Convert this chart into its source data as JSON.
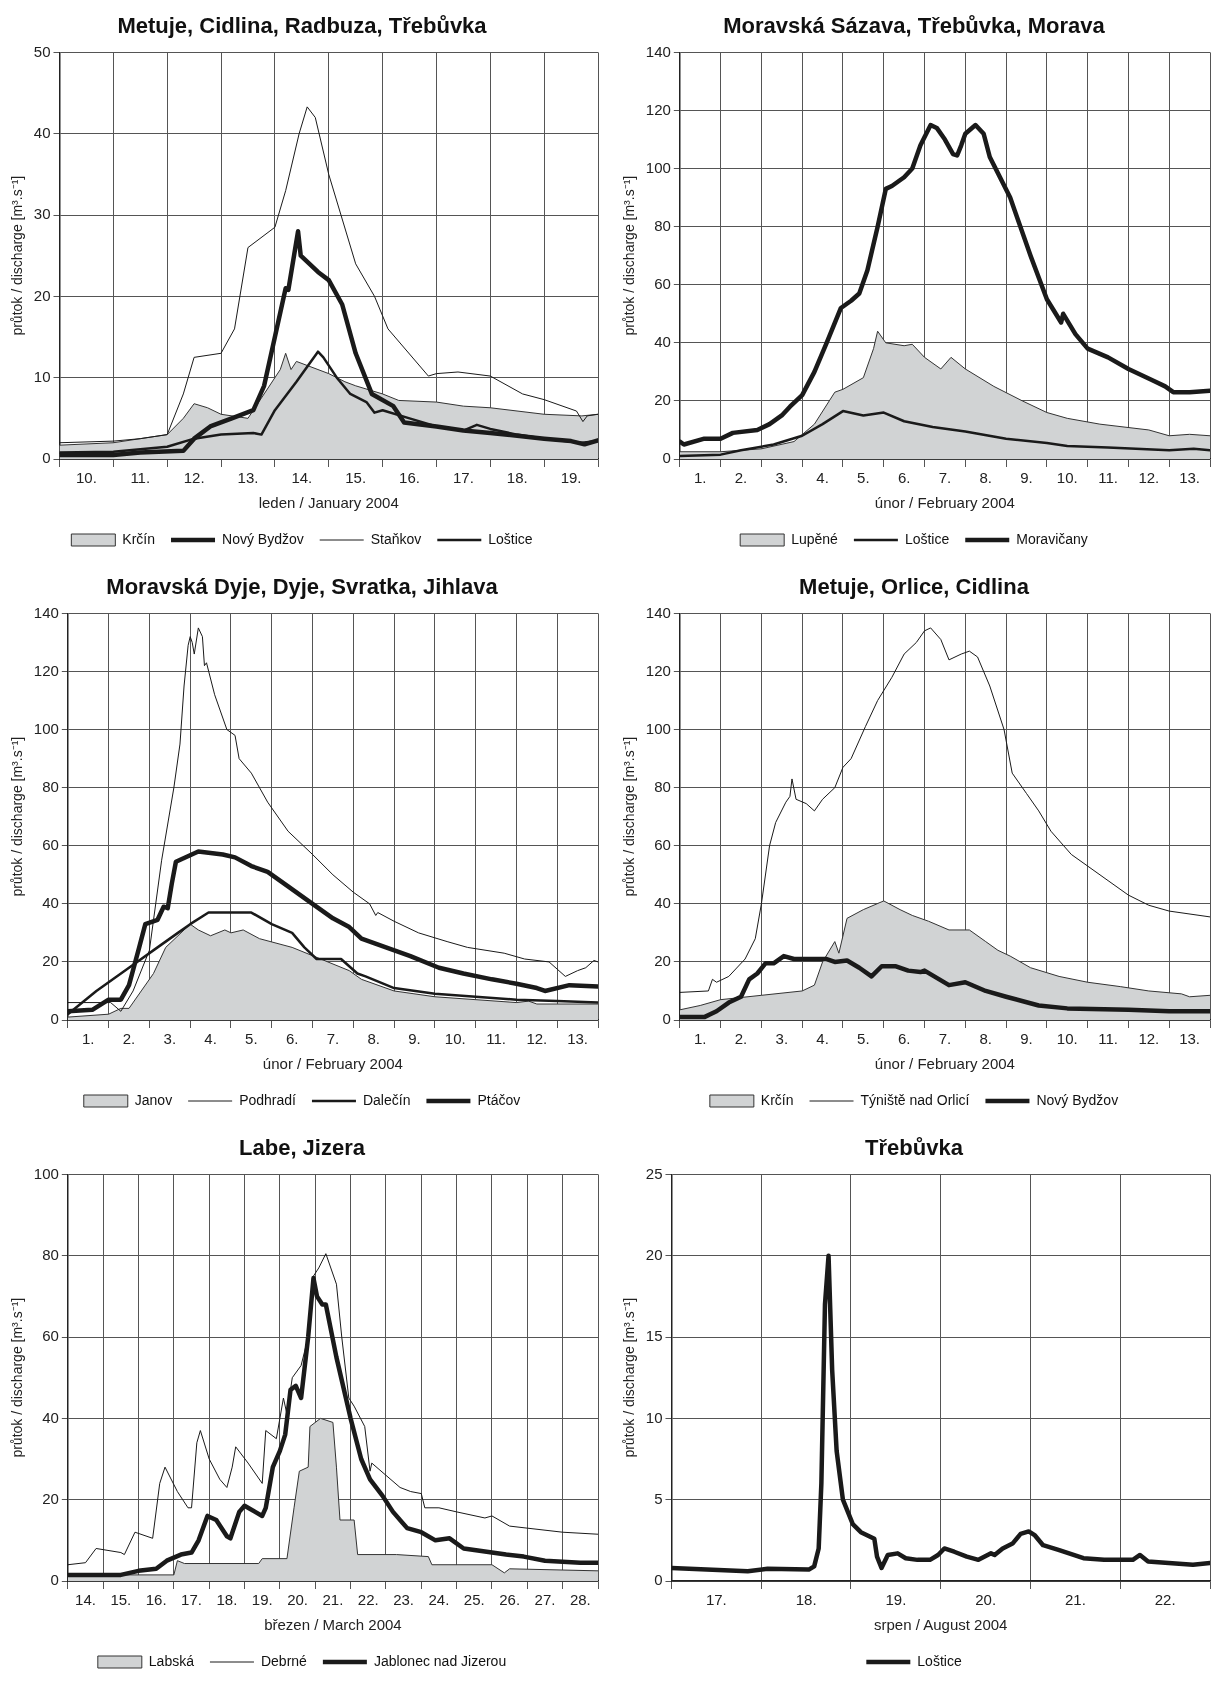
{
  "chart_data": [
    {
      "type": "line",
      "title": "Metuje, Cidlina, Radbuza, Třebůvka",
      "xlabel": "leden / January 2004",
      "ylabel": "průtok / discharge [m³.s⁻¹]",
      "legend": "bottom",
      "grid": true,
      "xlim": [
        10,
        20
      ],
      "ylim": [
        0,
        50
      ],
      "yticks": [
        0,
        10,
        20,
        30,
        40,
        50
      ],
      "xticks": [
        {
          "value": 10,
          "label": null
        },
        {
          "value": 10.5,
          "label": "10."
        },
        {
          "value": 11,
          "label": null
        },
        {
          "value": 11.5,
          "label": "11."
        },
        {
          "value": 12,
          "label": null
        },
        {
          "value": 12.5,
          "label": "12."
        },
        {
          "value": 13,
          "label": null
        },
        {
          "value": 13.5,
          "label": "13."
        },
        {
          "value": 14,
          "label": null
        },
        {
          "value": 14.5,
          "label": "14."
        },
        {
          "value": 15,
          "label": null
        },
        {
          "value": 15.5,
          "label": "15."
        },
        {
          "value": 16,
          "label": null
        },
        {
          "value": 16.5,
          "label": "16."
        },
        {
          "value": 17,
          "label": null
        },
        {
          "value": 17.5,
          "label": "17."
        },
        {
          "value": 18,
          "label": null
        },
        {
          "value": 18.5,
          "label": "18."
        },
        {
          "value": 19,
          "label": null
        },
        {
          "value": 19.5,
          "label": "19."
        },
        {
          "value": 20,
          "label": null
        }
      ],
      "series": [
        {
          "name": "Krčín",
          "type": "area",
          "color": "#d1d3d4",
          "x": [
            10,
            11,
            11.5,
            12,
            12.3,
            12.5,
            12.75,
            13,
            13.5,
            13.7,
            14.1,
            14.2,
            14.3,
            14.4,
            14.6,
            14.8,
            15,
            15.3,
            15.5,
            16,
            16.3,
            17,
            17.5,
            18,
            19,
            19.7,
            20
          ],
          "values": [
            1.7,
            2,
            2.5,
            3,
            5,
            6.8,
            6.3,
            5.5,
            5,
            7,
            11,
            13,
            11,
            12,
            11.5,
            11,
            10.5,
            9.5,
            9,
            8,
            7.2,
            7,
            6.5,
            6.3,
            5.5,
            5.3,
            5.5
          ]
        },
        {
          "name": "Nový Bydžov",
          "color": "#1a1a1a",
          "x": [
            10,
            11,
            11.5,
            12.3,
            12.5,
            12.8,
            13.2,
            13.6,
            13.8,
            14,
            14.2,
            14.25,
            14.43,
            14.48,
            14.8,
            15,
            15.25,
            15.5,
            15.8,
            16.2,
            16.4,
            17,
            17.5,
            18,
            19,
            19.5,
            19.75,
            20
          ],
          "values": [
            0.5,
            0.5,
            0.8,
            1,
            2.5,
            4,
            5,
            6,
            9,
            15,
            21,
            20.8,
            28,
            25,
            23,
            22,
            19,
            13,
            8,
            6.5,
            4.5,
            4,
            3.5,
            3.2,
            2.5,
            2.2,
            1.8,
            2.3
          ]
        },
        {
          "name": "Staňkov",
          "color": "#1a1a1a",
          "x": [
            10,
            11,
            11.5,
            12,
            12.3,
            12.5,
            13,
            13.25,
            13.5,
            14,
            14.2,
            14.45,
            14.6,
            14.75,
            15,
            15.5,
            15.85,
            16.1,
            16.85,
            17,
            17.4,
            18,
            18.6,
            19,
            19.6,
            19.72,
            19.8,
            20
          ],
          "values": [
            2,
            2.2,
            2.5,
            3,
            8,
            12.5,
            13,
            16,
            26,
            28.5,
            33,
            40,
            43.3,
            42,
            35,
            24,
            20,
            16,
            10.2,
            10.5,
            10.7,
            10.2,
            8,
            7.3,
            5.9,
            4.6,
            5.3,
            5.5
          ]
        },
        {
          "name": "Loštice",
          "color": "#1a1a1a",
          "x": [
            10,
            11,
            12,
            12.5,
            13,
            13.6,
            13.75,
            14,
            14.4,
            14.8,
            14.9,
            15.15,
            15.4,
            15.7,
            15.85,
            16,
            16.5,
            17,
            17.5,
            17.75,
            18,
            18.5,
            19,
            19.7,
            20
          ],
          "values": [
            0.8,
            0.9,
            1.5,
            2.5,
            3,
            3.2,
            3,
            6,
            9.5,
            13.2,
            12.5,
            10,
            8,
            7,
            5.7,
            6,
            5,
            4,
            3.5,
            4.2,
            3.7,
            3,
            2.5,
            2,
            2.2
          ]
        }
      ]
    },
    {
      "type": "line",
      "title": "Moravská Sázava, Třebůvka, Morava",
      "xlabel": "únor / February 2004",
      "ylabel": "průtok / discharge [m³.s⁻¹]",
      "legend": "bottom",
      "grid": true,
      "xlim": [
        1,
        14
      ],
      "ylim": [
        0,
        140
      ],
      "yticks": [
        0,
        20,
        40,
        60,
        80,
        100,
        120,
        140
      ],
      "xticks": [
        {
          "value": 1,
          "label": null
        },
        {
          "value": 1.5,
          "label": "1."
        },
        {
          "value": 2,
          "label": null
        },
        {
          "value": 2.5,
          "label": "2."
        },
        {
          "value": 3,
          "label": null
        },
        {
          "value": 3.5,
          "label": "3."
        },
        {
          "value": 4,
          "label": null
        },
        {
          "value": 4.5,
          "label": "4."
        },
        {
          "value": 5,
          "label": null
        },
        {
          "value": 5.5,
          "label": "5."
        },
        {
          "value": 6,
          "label": null
        },
        {
          "value": 6.5,
          "label": "6."
        },
        {
          "value": 7,
          "label": null
        },
        {
          "value": 7.5,
          "label": "7."
        },
        {
          "value": 8,
          "label": null
        },
        {
          "value": 8.5,
          "label": "8."
        },
        {
          "value": 9,
          "label": null
        },
        {
          "value": 9.5,
          "label": "9."
        },
        {
          "value": 10,
          "label": null
        },
        {
          "value": 10.5,
          "label": "10."
        },
        {
          "value": 11,
          "label": null
        },
        {
          "value": 11.5,
          "label": "11."
        },
        {
          "value": 12,
          "label": null
        },
        {
          "value": 12.5,
          "label": "12."
        },
        {
          "value": 13,
          "label": null
        },
        {
          "value": 13.5,
          "label": "13."
        },
        {
          "value": 14,
          "label": null
        }
      ],
      "series": [
        {
          "name": "Lupěné",
          "type": "area",
          "color": "#d1d3d4",
          "x": [
            1,
            2,
            3,
            3.8,
            4.3,
            4.8,
            5,
            5.5,
            5.75,
            5.85,
            6.05,
            6.5,
            6.7,
            7,
            7.4,
            7.65,
            8,
            8.7,
            9.4,
            10,
            10.5,
            11.3,
            12.5,
            13,
            13.5,
            14
          ],
          "values": [
            2.5,
            2.5,
            3.5,
            6,
            12,
            23,
            24,
            28,
            38,
            44,
            40,
            39,
            39.5,
            35,
            31,
            35,
            31,
            25,
            20,
            16,
            14,
            12,
            10,
            8,
            8.5,
            8
          ]
        },
        {
          "name": "Loštice",
          "color": "#1a1a1a",
          "x": [
            1,
            2,
            2.5,
            3.3,
            4,
            4.5,
            5,
            5.5,
            6,
            6.5,
            7.2,
            8,
            9,
            10,
            10.5,
            11.5,
            13,
            13.6,
            14
          ],
          "values": [
            1,
            1.5,
            3,
            5,
            8,
            12,
            16.5,
            15,
            16,
            13,
            11,
            9.5,
            7,
            5.5,
            4.5,
            4,
            3,
            3.5,
            3
          ]
        },
        {
          "name": "Moravičany",
          "color": "#1a1a1a",
          "x": [
            1,
            1.1,
            1.6,
            2,
            2.3,
            2.9,
            3.2,
            3.5,
            3.7,
            4,
            4.3,
            4.6,
            4.95,
            5.2,
            5.4,
            5.6,
            5.85,
            6.05,
            6.2,
            6.5,
            6.7,
            6.9,
            7.15,
            7.3,
            7.5,
            7.7,
            7.8,
            7.9,
            8,
            8.25,
            8.45,
            8.6,
            9.1,
            9.6,
            10,
            10.35,
            10.4,
            10.7,
            11,
            11.5,
            12,
            12.6,
            12.9,
            13.1,
            13.5,
            14
          ],
          "values": [
            6,
            5,
            7,
            7,
            9,
            10,
            12,
            15,
            18,
            22,
            30,
            40,
            52,
            54.5,
            57,
            65,
            80,
            93,
            94,
            97,
            100,
            108,
            115,
            114,
            110,
            105,
            104.5,
            108,
            112,
            115,
            112,
            104,
            90,
            70,
            55,
            47,
            50,
            43,
            38,
            35,
            31,
            27,
            25,
            23,
            23,
            23.5
          ]
        }
      ]
    },
    {
      "type": "line",
      "title": "Moravská Dyje, Dyje, Svratka, Jihlava",
      "xlabel": "únor / February 2004",
      "ylabel": "průtok / discharge [m³.s⁻¹]",
      "legend": "bottom",
      "grid": true,
      "xlim": [
        1,
        14
      ],
      "ylim": [
        0,
        140
      ],
      "yticks": [
        0,
        20,
        40,
        60,
        80,
        100,
        120,
        140
      ],
      "xticks": [
        {
          "value": 1,
          "label": null
        },
        {
          "value": 1.5,
          "label": "1."
        },
        {
          "value": 2,
          "label": null
        },
        {
          "value": 2.5,
          "label": "2."
        },
        {
          "value": 3,
          "label": null
        },
        {
          "value": 3.5,
          "label": "3."
        },
        {
          "value": 4,
          "label": null
        },
        {
          "value": 4.5,
          "label": "4."
        },
        {
          "value": 5,
          "label": null
        },
        {
          "value": 5.5,
          "label": "5."
        },
        {
          "value": 6,
          "label": null
        },
        {
          "value": 6.5,
          "label": "6."
        },
        {
          "value": 7,
          "label": null
        },
        {
          "value": 7.5,
          "label": "7."
        },
        {
          "value": 8,
          "label": null
        },
        {
          "value": 8.5,
          "label": "8."
        },
        {
          "value": 9,
          "label": null
        },
        {
          "value": 9.5,
          "label": "9."
        },
        {
          "value": 10,
          "label": null
        },
        {
          "value": 10.5,
          "label": "10."
        },
        {
          "value": 11,
          "label": null
        },
        {
          "value": 11.5,
          "label": "11."
        },
        {
          "value": 12,
          "label": null
        },
        {
          "value": 12.5,
          "label": "12."
        },
        {
          "value": 13,
          "label": null
        },
        {
          "value": 13.5,
          "label": "13."
        },
        {
          "value": 14,
          "label": null
        }
      ],
      "series": [
        {
          "name": "Janov",
          "type": "area",
          "color": "#d1d3d4",
          "x": [
            1,
            2,
            2.3,
            2.5,
            2.8,
            3.1,
            3.4,
            4,
            4.2,
            4.5,
            4.85,
            5,
            5.3,
            5.7,
            6.5,
            7.2,
            7.9,
            8.2,
            9,
            10,
            11,
            12,
            12.3,
            12.5,
            14
          ],
          "values": [
            1,
            2,
            4,
            4,
            10,
            16,
            25,
            33,
            31,
            29,
            31,
            30,
            31,
            28,
            25,
            21,
            17,
            14,
            10,
            8,
            7,
            6,
            6.5,
            5.5,
            5.5
          ]
        },
        {
          "name": "Podhradí",
          "color": "#1a1a1a",
          "x": [
            1,
            2.05,
            2.3,
            2.6,
            3,
            3.3,
            3.6,
            3.75,
            3.85,
            3.95,
            4,
            4.05,
            4.1,
            4.2,
            4.3,
            4.35,
            4.4,
            4.6,
            4.9,
            5.1,
            5.2,
            5.5,
            5.9,
            6.4,
            7,
            7.5,
            8,
            8.4,
            8.55,
            8.6,
            9,
            9.6,
            10.3,
            10.8,
            11.7,
            12.2,
            12.8,
            13.2,
            13.5,
            13.7,
            13.9,
            14
          ],
          "values": [
            6,
            6,
            3,
            10,
            24,
            55,
            80,
            95,
            115,
            129,
            132,
            130,
            126,
            135,
            132,
            122,
            123,
            112,
            100,
            98,
            90,
            85,
            75,
            65,
            57,
            50,
            44,
            40,
            36,
            37,
            34,
            30,
            27,
            25,
            23,
            21,
            20,
            15,
            17,
            18,
            20.5,
            20
          ]
        },
        {
          "name": "Dalečín",
          "color": "#1a1a1a",
          "x": [
            1,
            1.7,
            2.5,
            3.2,
            3.7,
            4,
            4.45,
            5.5,
            6,
            6.5,
            6.8,
            7.1,
            7.7,
            8.1,
            8.3,
            9,
            10,
            11,
            12,
            13,
            14
          ],
          "values": [
            2,
            10,
            18,
            25,
            30,
            33,
            37,
            37,
            33,
            30,
            25,
            21,
            21,
            16,
            15,
            11,
            9,
            8,
            7,
            6.5,
            6
          ]
        },
        {
          "name": "Ptáčov",
          "color": "#1a1a1a",
          "x": [
            1,
            1.6,
            2,
            2.3,
            2.5,
            2.75,
            2.9,
            3.2,
            3.35,
            3.45,
            3.55,
            3.65,
            4.2,
            4.8,
            5.1,
            5.5,
            5.9,
            6.4,
            7,
            7.5,
            7.9,
            8.2,
            8.8,
            9.4,
            10.1,
            10.7,
            11.4,
            12,
            12.5,
            12.7,
            13.3,
            14
          ],
          "values": [
            3,
            3.5,
            7,
            7,
            12,
            25,
            33,
            34.5,
            39,
            38.5,
            47,
            54.5,
            58,
            57,
            56,
            53,
            51,
            46,
            40,
            35,
            32,
            28,
            25,
            22,
            18,
            16,
            14,
            12.5,
            11,
            10,
            12,
            11.5
          ]
        }
      ]
    },
    {
      "type": "line",
      "title": "Metuje, Orlice, Cidlina",
      "xlabel": "únor / February 2004",
      "ylabel": "průtok / discharge [m³.s⁻¹]",
      "legend": "bottom",
      "grid": true,
      "xlim": [
        1,
        14
      ],
      "ylim": [
        0,
        140
      ],
      "yticks": [
        0,
        20,
        40,
        60,
        80,
        100,
        120,
        140
      ],
      "xticks": [
        {
          "value": 1,
          "label": null
        },
        {
          "value": 1.5,
          "label": "1."
        },
        {
          "value": 2,
          "label": null
        },
        {
          "value": 2.5,
          "label": "2."
        },
        {
          "value": 3,
          "label": null
        },
        {
          "value": 3.5,
          "label": "3."
        },
        {
          "value": 4,
          "label": null
        },
        {
          "value": 4.5,
          "label": "4."
        },
        {
          "value": 5,
          "label": null
        },
        {
          "value": 5.5,
          "label": "5."
        },
        {
          "value": 6,
          "label": null
        },
        {
          "value": 6.5,
          "label": "6."
        },
        {
          "value": 7,
          "label": null
        },
        {
          "value": 7.5,
          "label": "7."
        },
        {
          "value": 8,
          "label": null
        },
        {
          "value": 8.5,
          "label": "8."
        },
        {
          "value": 9,
          "label": null
        },
        {
          "value": 9.5,
          "label": "9."
        },
        {
          "value": 10,
          "label": null
        },
        {
          "value": 10.5,
          "label": "10."
        },
        {
          "value": 11,
          "label": null
        },
        {
          "value": 11.5,
          "label": "11."
        },
        {
          "value": 12,
          "label": null
        },
        {
          "value": 12.5,
          "label": "12."
        },
        {
          "value": 13,
          "label": null
        },
        {
          "value": 13.5,
          "label": "13."
        },
        {
          "value": 14,
          "label": null
        }
      ],
      "series": [
        {
          "name": "Krčín",
          "type": "area",
          "color": "#d1d3d4",
          "x": [
            1,
            1.5,
            2,
            3,
            4,
            4.3,
            4.5,
            4.8,
            4.9,
            5.1,
            5.5,
            6,
            6.4,
            6.7,
            7.1,
            7.6,
            8.1,
            8.5,
            8.8,
            9.1,
            9.6,
            10.3,
            11,
            11.8,
            12.5,
            13.3,
            13.5,
            14
          ],
          "values": [
            3.5,
            5,
            7,
            8.5,
            10,
            12,
            20,
            27,
            23,
            35,
            38,
            41,
            38,
            36,
            34,
            31,
            31,
            27,
            24,
            22,
            18,
            15,
            13,
            11.5,
            10,
            9,
            8,
            8.5
          ]
        },
        {
          "name": "Týniště nad Orlicí",
          "color": "#1a1a1a",
          "x": [
            1,
            1.7,
            1.8,
            1.9,
            2.2,
            2.6,
            2.85,
            3,
            3.2,
            3.35,
            3.6,
            3.7,
            3.75,
            3.85,
            4.1,
            4.3,
            4.5,
            4.8,
            5,
            5.2,
            5.55,
            5.85,
            6.2,
            6.5,
            6.8,
            7,
            7.15,
            7.4,
            7.6,
            7.9,
            8.1,
            8.3,
            8.6,
            8.95,
            9.15,
            9.5,
            9.8,
            10.1,
            10.6,
            11,
            11.5,
            12,
            12.5,
            13,
            14
          ],
          "values": [
            9.5,
            10,
            14,
            13,
            15,
            21,
            28,
            40,
            60,
            68,
            75,
            77,
            83,
            76,
            74.5,
            72,
            76,
            80,
            87,
            90,
            101,
            110,
            118,
            126,
            130,
            134,
            135,
            131,
            124,
            126,
            127,
            125,
            115,
            100,
            85,
            78,
            72,
            65,
            57,
            53,
            48,
            43,
            39.5,
            37.5,
            35.5
          ]
        },
        {
          "name": "Nový Bydžov",
          "color": "#1a1a1a",
          "x": [
            1,
            1.6,
            1.9,
            2.2,
            2.5,
            2.7,
            2.9,
            3.1,
            3.3,
            3.55,
            3.8,
            4.6,
            4.8,
            5.1,
            5.4,
            5.7,
            5.95,
            6.3,
            6.6,
            6.9,
            7,
            7.6,
            8,
            8.5,
            9,
            9.8,
            10.5,
            12,
            13,
            14
          ],
          "values": [
            1,
            1,
            3,
            6,
            8,
            14,
            16,
            19.5,
            19.5,
            22,
            21,
            21,
            20,
            20.5,
            18,
            15,
            18.5,
            18.5,
            17,
            16.5,
            17,
            12,
            13,
            10,
            8,
            5,
            4,
            3.5,
            3,
            3
          ]
        }
      ]
    },
    {
      "type": "line",
      "title": "Labe, Jizera",
      "xlabel": "březen / March 2004",
      "ylabel": "průtok / discharge [m³.s⁻¹]",
      "legend": "bottom",
      "grid": true,
      "xlim": [
        14,
        29
      ],
      "ylim": [
        0,
        100
      ],
      "yticks": [
        0,
        20,
        40,
        60,
        80,
        100
      ],
      "xticks": [
        {
          "value": 14,
          "label": null
        },
        {
          "value": 14.5,
          "label": "14."
        },
        {
          "value": 15,
          "label": null
        },
        {
          "value": 15.5,
          "label": "15."
        },
        {
          "value": 16,
          "label": null
        },
        {
          "value": 16.5,
          "label": "16."
        },
        {
          "value": 17,
          "label": null
        },
        {
          "value": 17.5,
          "label": "17."
        },
        {
          "value": 18,
          "label": null
        },
        {
          "value": 18.5,
          "label": "18."
        },
        {
          "value": 19,
          "label": null
        },
        {
          "value": 19.5,
          "label": "19."
        },
        {
          "value": 20,
          "label": null
        },
        {
          "value": 20.5,
          "label": "20."
        },
        {
          "value": 21,
          "label": null
        },
        {
          "value": 21.5,
          "label": "21."
        },
        {
          "value": 22,
          "label": null
        },
        {
          "value": 22.5,
          "label": "22."
        },
        {
          "value": 23,
          "label": null
        },
        {
          "value": 23.5,
          "label": "23."
        },
        {
          "value": 24,
          "label": null
        },
        {
          "value": 24.5,
          "label": "24."
        },
        {
          "value": 25,
          "label": null
        },
        {
          "value": 25.5,
          "label": "25."
        },
        {
          "value": 26,
          "label": null
        },
        {
          "value": 26.5,
          "label": "26."
        },
        {
          "value": 27,
          "label": null
        },
        {
          "value": 27.5,
          "label": "27."
        },
        {
          "value": 28,
          "label": null
        },
        {
          "value": 28.5,
          "label": "28."
        },
        {
          "value": 29,
          "label": null
        }
      ],
      "series": [
        {
          "name": "Labská",
          "type": "area",
          "color": "#d1d3d4",
          "x": [
            14,
            17,
            17.1,
            17.3,
            19.4,
            19.5,
            20.2,
            20.4,
            20.55,
            20.8,
            20.85,
            21.15,
            21.5,
            21.6,
            21.7,
            22.1,
            22.2,
            23.3,
            24.2,
            24.3,
            26,
            26.35,
            26.5,
            29
          ],
          "values": [
            1.5,
            1.5,
            5,
            4.3,
            4.3,
            5.5,
            5.5,
            18,
            27,
            28,
            38,
            40,
            39,
            28,
            15,
            15,
            6.5,
            6.5,
            6,
            4,
            4,
            2,
            3,
            2.5
          ]
        },
        {
          "name": "Debrné",
          "color": "#1a1a1a",
          "x": [
            14,
            14.5,
            14.8,
            15.5,
            15.6,
            15.9,
            16.4,
            16.6,
            16.75,
            17.1,
            17.4,
            17.5,
            17.65,
            17.75,
            18,
            18.3,
            18.5,
            18.65,
            18.75,
            19.1,
            19.5,
            19.6,
            19.9,
            20.1,
            20.2,
            20.35,
            20.6,
            20.8,
            20.95,
            21.1,
            21.3,
            21.6,
            21.75,
            21.95,
            22.1,
            22.4,
            22.55,
            22.6,
            23,
            23.4,
            23.7,
            24,
            24.1,
            24.5,
            25,
            25.8,
            26,
            26.5,
            27,
            28,
            29
          ],
          "values": [
            4,
            4.5,
            8,
            7,
            6.5,
            12,
            10.5,
            24,
            28,
            22,
            18,
            18,
            34,
            37,
            30,
            25,
            23,
            28,
            33,
            29,
            24,
            37,
            35,
            45,
            41,
            50,
            53,
            60,
            75,
            77,
            80.5,
            73,
            60,
            45,
            43,
            38,
            27,
            29,
            26,
            23,
            22,
            21.5,
            18,
            18,
            17,
            15.5,
            16,
            13.5,
            13,
            12,
            11.5
          ]
        },
        {
          "name": "Jablonec nad Jizerou",
          "color": "#1a1a1a",
          "x": [
            14,
            15.5,
            16,
            16.5,
            16.8,
            17.2,
            17.5,
            17.7,
            17.95,
            18.2,
            18.5,
            18.6,
            18.85,
            19,
            19.3,
            19.5,
            19.6,
            19.8,
            20,
            20.15,
            20.3,
            20.45,
            20.6,
            20.8,
            20.95,
            21.05,
            21.2,
            21.3,
            21.6,
            22,
            22.3,
            22.55,
            22.9,
            23.2,
            23.6,
            24,
            24.4,
            24.8,
            25.2,
            25.6,
            26,
            26.4,
            26.9,
            27.5,
            28.5,
            29
          ],
          "values": [
            1.5,
            1.5,
            2.5,
            3,
            5,
            6.5,
            7,
            10,
            16,
            15,
            11,
            10.5,
            17,
            18.5,
            17,
            16,
            18,
            28,
            32,
            36,
            47,
            48,
            45,
            60,
            74.5,
            70,
            68,
            68,
            55,
            40,
            30,
            25,
            21,
            17,
            13,
            12,
            10,
            10.5,
            8,
            7.5,
            7,
            6.5,
            6,
            5,
            4.5,
            4.5
          ]
        }
      ]
    },
    {
      "type": "line",
      "title": "Třebůvka",
      "xlabel": "srpen / August 2004",
      "ylabel": "průtok / discharge [m³.s⁻¹]",
      "legend": "bottom",
      "grid": true,
      "xlim": [
        17,
        23
      ],
      "ylim": [
        0,
        25
      ],
      "yticks": [
        0,
        5,
        10,
        15,
        20,
        25
      ],
      "xticks": [
        {
          "value": 17,
          "label": null
        },
        {
          "value": 17.5,
          "label": "17."
        },
        {
          "value": 18,
          "label": null
        },
        {
          "value": 18.5,
          "label": "18."
        },
        {
          "value": 19,
          "label": null
        },
        {
          "value": 19.5,
          "label": "19."
        },
        {
          "value": 20,
          "label": null
        },
        {
          "value": 20.5,
          "label": "20."
        },
        {
          "value": 21,
          "label": null
        },
        {
          "value": 21.5,
          "label": "21."
        },
        {
          "value": 22,
          "label": null
        },
        {
          "value": 22.5,
          "label": "22."
        },
        {
          "value": 23,
          "label": null
        }
      ],
      "series": [
        {
          "name": "Loštice",
          "color": "#1a1a1a",
          "x": [
            17,
            17.85,
            18.07,
            18.53,
            18.59,
            18.64,
            18.67,
            18.71,
            18.75,
            18.79,
            18.84,
            18.91,
            19.02,
            19.11,
            19.26,
            19.29,
            19.34,
            19.41,
            19.52,
            19.61,
            19.74,
            19.88,
            19.97,
            20.04,
            20.15,
            20.29,
            20.42,
            20.56,
            20.6,
            20.69,
            20.8,
            20.89,
            20.98,
            21.05,
            21.14,
            21.32,
            21.59,
            21.82,
            22.14,
            22.22,
            22.31,
            22.54,
            22.81,
            23
          ],
          "values": [
            0.8,
            0.6,
            0.75,
            0.7,
            0.9,
            2,
            6,
            17,
            20,
            13,
            8,
            5,
            3.5,
            3,
            2.6,
            1.5,
            0.8,
            1.6,
            1.7,
            1.4,
            1.3,
            1.3,
            1.6,
            2,
            1.8,
            1.5,
            1.3,
            1.7,
            1.6,
            2,
            2.3,
            2.9,
            3.05,
            2.8,
            2.2,
            1.9,
            1.4,
            1.3,
            1.3,
            1.6,
            1.2,
            1.1,
            1,
            1.1
          ]
        }
      ]
    }
  ]
}
